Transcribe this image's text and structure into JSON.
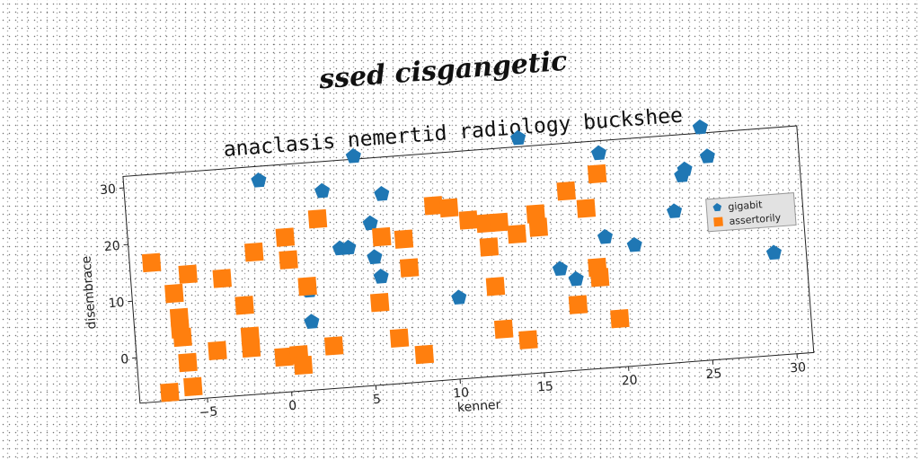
{
  "suptitle": "ssed cisgangetic",
  "chart_data": {
    "type": "scatter",
    "title": "anaclasis nemertid radiology buckshee",
    "xlabel": "kenner",
    "ylabel": "disembrace",
    "xlim": [
      -9,
      31
    ],
    "ylim": [
      -8,
      32
    ],
    "xticks": [
      -5,
      0,
      5,
      10,
      15,
      20,
      25,
      30
    ],
    "yticks": [
      0,
      10,
      20,
      30
    ],
    "xtick_labels": [
      "−5",
      "0",
      "5",
      "10",
      "15",
      "20",
      "25",
      "30"
    ],
    "ytick_labels": [
      "0",
      "10",
      "20",
      "30"
    ],
    "grid": false,
    "legend_position": "center-right",
    "series": [
      {
        "name": "gigabit",
        "color": "#1f77b4",
        "marker": "pentagon",
        "points": [
          [
            -1,
            29.5
          ],
          [
            2.7,
            26.8
          ],
          [
            4.7,
            32.5
          ],
          [
            6.2,
            25.5
          ],
          [
            5.4,
            20.5
          ],
          [
            3.5,
            16.5
          ],
          [
            4.0,
            16.5
          ],
          [
            5.5,
            14.5
          ],
          [
            5.8,
            11.0
          ],
          [
            1.5,
            9.5
          ],
          [
            1.5,
            4.0
          ],
          [
            14.5,
            33.5
          ],
          [
            19.2,
            29.8
          ],
          [
            19.2,
            15.0
          ],
          [
            20.9,
            13.2
          ],
          [
            16.4,
            10.0
          ],
          [
            17.3,
            8.0
          ],
          [
            10.3,
            6.3
          ],
          [
            23.4,
            18.6
          ],
          [
            24.0,
            24.8
          ],
          [
            24.2,
            25.8
          ],
          [
            25.3,
            33.0
          ],
          [
            25.6,
            27.8
          ],
          [
            29.1,
            10.0
          ]
        ]
      },
      {
        "name": "assertorily",
        "color": "#ff7f0e",
        "marker": "square",
        "points": [
          [
            -7.7,
            16.5
          ],
          [
            -6.5,
            10.8
          ],
          [
            -6.3,
            6.5
          ],
          [
            -6.3,
            4.5
          ],
          [
            -6.2,
            3.0
          ],
          [
            -6.0,
            -1.5
          ],
          [
            -5.8,
            -5.8
          ],
          [
            -7.2,
            -6.5
          ],
          [
            -5.6,
            14.0
          ],
          [
            -3.6,
            12.8
          ],
          [
            -4.2,
            0.2
          ],
          [
            -2.4,
            7.8
          ],
          [
            -2.2,
            2.3
          ],
          [
            -2.2,
            0.2
          ],
          [
            -1.6,
            17.0
          ],
          [
            0.3,
            19.2
          ],
          [
            0.4,
            15.2
          ],
          [
            -0.3,
            -1.8
          ],
          [
            0.6,
            -1.6
          ],
          [
            0.8,
            -3.5
          ],
          [
            1.4,
            10.3
          ],
          [
            2.3,
            22.0
          ],
          [
            2.7,
            -0.5
          ],
          [
            5.6,
            6.5
          ],
          [
            6.0,
            18.0
          ],
          [
            6.6,
            0.0
          ],
          [
            7.3,
            17.3
          ],
          [
            7.5,
            12.2
          ],
          [
            8.0,
            -3.2
          ],
          [
            9.2,
            22.8
          ],
          [
            10.1,
            22.2
          ],
          [
            11.2,
            19.8
          ],
          [
            12.2,
            19.0
          ],
          [
            13.0,
            19.0
          ],
          [
            14.0,
            16.7
          ],
          [
            12.3,
            14.8
          ],
          [
            12.5,
            7.8
          ],
          [
            12.8,
            0.2
          ],
          [
            14.2,
            -2.0
          ],
          [
            15.2,
            20.0
          ],
          [
            15.3,
            17.6
          ],
          [
            17.1,
            23.6
          ],
          [
            17.3,
            3.5
          ],
          [
            18.2,
            20.3
          ],
          [
            18.6,
            9.8
          ],
          [
            18.7,
            8.0
          ],
          [
            19.0,
            26.2
          ],
          [
            19.7,
            0.5
          ]
        ]
      }
    ]
  }
}
